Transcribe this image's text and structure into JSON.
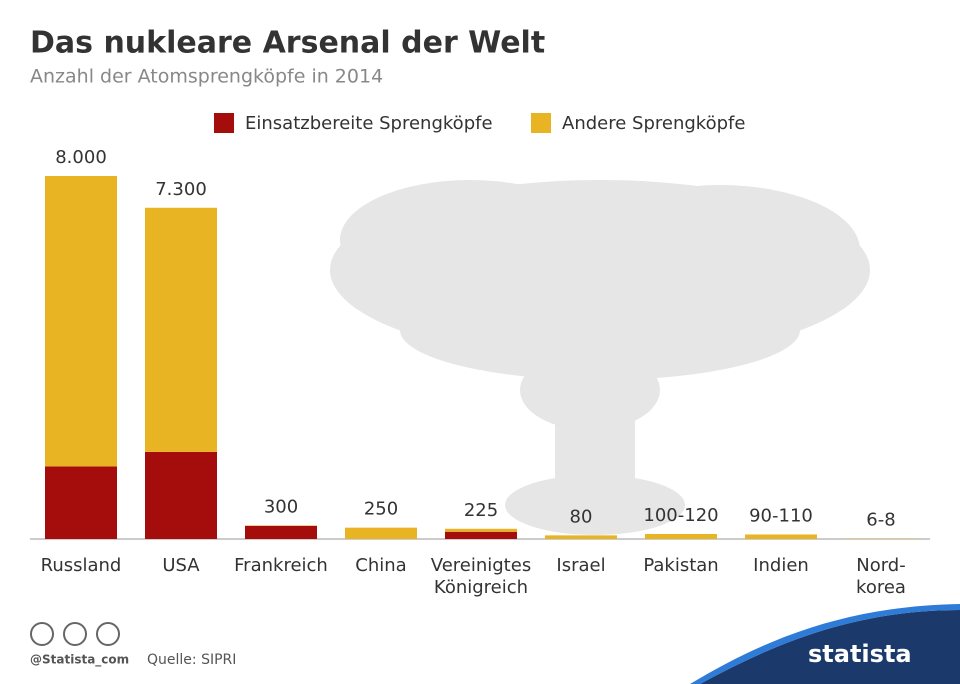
{
  "chart_data": {
    "type": "stacked_bar",
    "title": "Das nukleare Arsenal der Welt",
    "subtitle": "Anzahl der Atomsprengköpfe in 2014",
    "categories": [
      "Russland",
      "USA",
      "Frankreich",
      "China",
      "Vereinigtes\nKönigreich",
      "Israel",
      "Pakistan",
      "Indien",
      "Nord-\nkorea"
    ],
    "series": [
      {
        "name": "Einsatzbereite Sprengköpfe",
        "color": "#a50d0d",
        "values": [
          1600,
          1920,
          290,
          0,
          160,
          0,
          0,
          0,
          0
        ]
      },
      {
        "name": "Andere Sprengköpfe",
        "color": "#e9b423",
        "values": [
          6400,
          5380,
          10,
          250,
          65,
          80,
          110,
          100,
          7
        ]
      }
    ],
    "totals": [
      8000,
      7300,
      300,
      250,
      225,
      80,
      110,
      100,
      7
    ],
    "value_labels": [
      "8.000",
      "7.300",
      "300",
      "250",
      "225",
      "80",
      "100-120",
      "90-110",
      "6-8"
    ],
    "ylim": [
      0,
      8000
    ],
    "legend": "top"
  },
  "footer": {
    "handle": "@Statista_com",
    "source": "Quelle: SIPRI",
    "brand": "statista"
  }
}
